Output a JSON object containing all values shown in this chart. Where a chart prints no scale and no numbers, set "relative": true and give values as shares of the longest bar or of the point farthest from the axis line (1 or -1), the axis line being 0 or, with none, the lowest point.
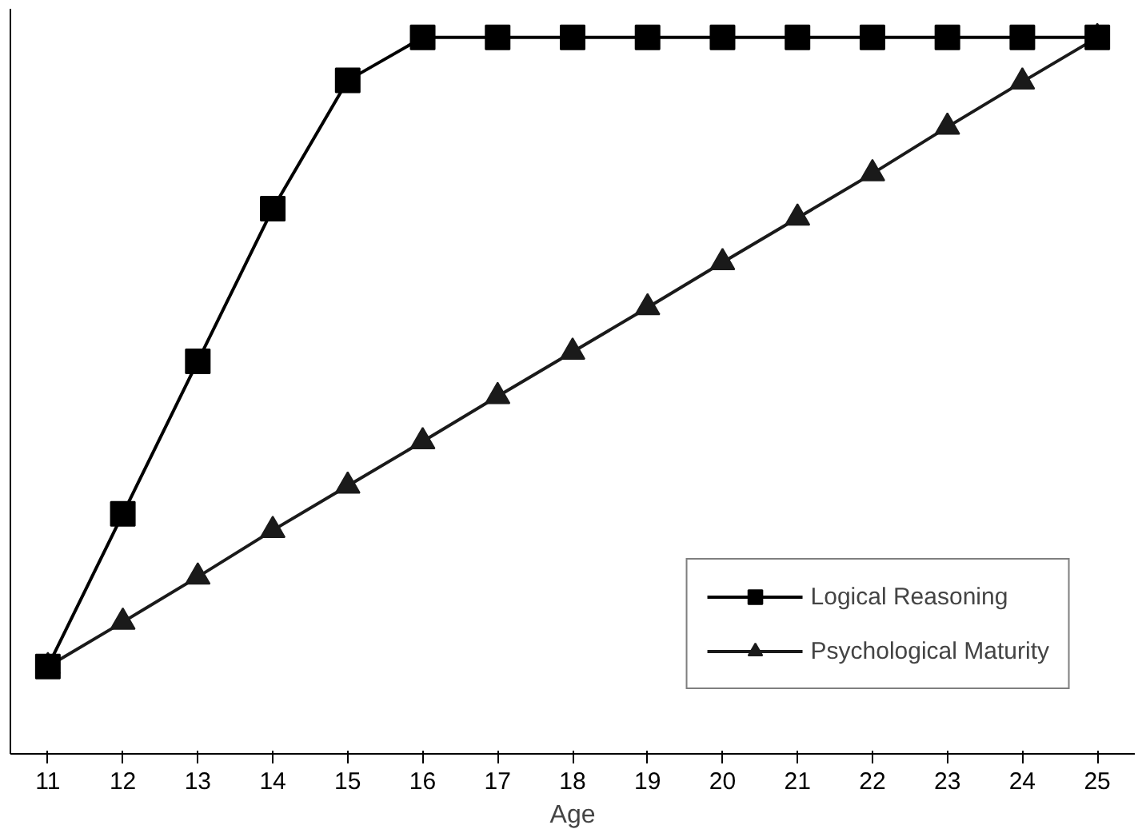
{
  "chart_data": {
    "type": "line",
    "xlabel": "Age",
    "relative": true,
    "grid": false,
    "legend": "bottom right",
    "categories": [
      "11",
      "12",
      "13",
      "14",
      "15",
      "16",
      "17",
      "18",
      "19",
      "20",
      "21",
      "22",
      "23",
      "24",
      "25"
    ],
    "series": [
      {
        "name": "Logical Reasoning",
        "color": "#000000",
        "marker": "square",
        "values": [
          0.122,
          0.335,
          0.548,
          0.761,
          0.94,
          1,
          1,
          1,
          1,
          1,
          1,
          1,
          1,
          1,
          1
        ]
      },
      {
        "name": "Psychological Maturity",
        "color": "#1a1a1a",
        "marker": "triangle",
        "values": [
          0.122,
          0.184,
          0.247,
          0.312,
          0.374,
          0.436,
          0.499,
          0.561,
          0.623,
          0.686,
          0.748,
          0.81,
          0.875,
          0.938,
          1
        ]
      }
    ]
  }
}
